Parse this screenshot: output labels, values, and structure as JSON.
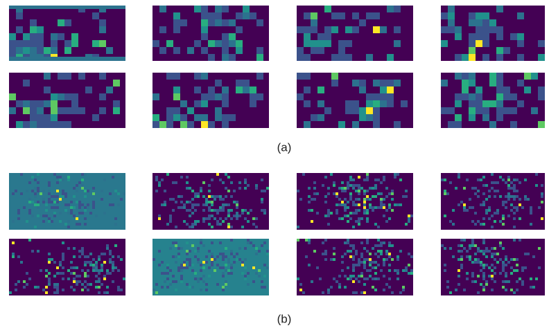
{
  "figure": {
    "caption_a": "(a)",
    "caption_b": "(b)"
  }
}
